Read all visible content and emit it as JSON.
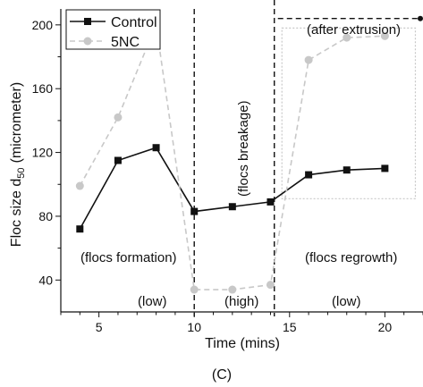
{
  "chart_data": {
    "type": "line",
    "xlabel": "Time (mins)",
    "ylabel_parts": {
      "main": "Floc size d",
      "sub": "50",
      "unit": "(micrometer)"
    },
    "xlim": [
      3,
      22
    ],
    "ylim": [
      20,
      210
    ],
    "xticks": [
      5,
      10,
      15,
      20
    ],
    "yticks": [
      40,
      80,
      120,
      160,
      200
    ],
    "grid": false,
    "legend_position": "top-left",
    "series": [
      {
        "name": "Control",
        "color": "#111111",
        "style": "solid",
        "marker": "square",
        "x": [
          4,
          6,
          8,
          10,
          12,
          14,
          16,
          18,
          20
        ],
        "values": [
          72,
          115,
          123,
          83,
          86,
          89,
          106,
          109,
          110
        ]
      },
      {
        "name": "5NC",
        "color": "#c8c8c8",
        "style": "dashed",
        "marker": "circle",
        "x": [
          4,
          6,
          8,
          10,
          12,
          14,
          16,
          18,
          20
        ],
        "values": [
          99,
          142,
          200,
          34,
          34,
          37,
          178,
          192,
          193
        ]
      }
    ],
    "vlines": [
      10,
      14.2
    ],
    "annotations": {
      "after_extrusion": "(after extrusion)",
      "flocs_breakage": "(flocs breakage)",
      "flocs_formation": "(flocs formation)",
      "flocs_regrowth": "(flocs regrowth)",
      "low_1": "(low)",
      "high": "(high)",
      "low_2": "(low)"
    },
    "panel_label": "(C)"
  }
}
